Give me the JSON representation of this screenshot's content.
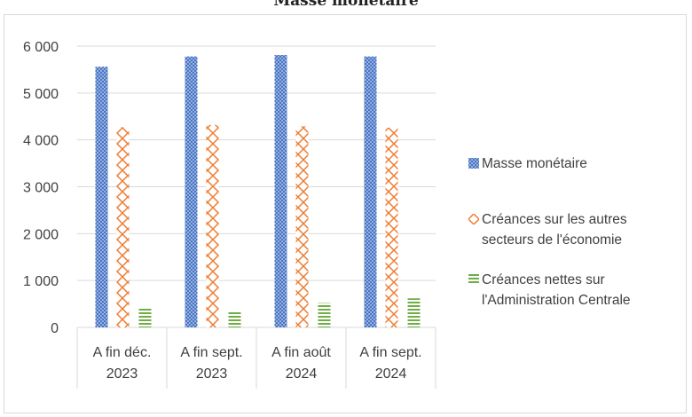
{
  "chart_data": {
    "type": "bar",
    "title": "Masse monétaire",
    "categories": [
      [
        "A fin déc.",
        "2023"
      ],
      [
        "A fin sept.",
        "2023"
      ],
      [
        "A fin août",
        "2024"
      ],
      [
        "A fin sept.",
        "2024"
      ]
    ],
    "series": [
      {
        "name": "Masse monétaire",
        "values": [
          5560,
          5780,
          5810,
          5780
        ],
        "color": "#4472c4",
        "pattern": "crosshatch"
      },
      {
        "name": "Créances sur les autres secteurs de l'économie",
        "values": [
          4270,
          4320,
          4290,
          4260
        ],
        "color": "#ed7d31",
        "pattern": "diamond"
      },
      {
        "name": "Créances nettes sur l'Administration Centrale",
        "values": [
          430,
          340,
          520,
          620
        ],
        "color": "#70ad47",
        "pattern": "horizontal-lines"
      }
    ],
    "ylim": [
      0,
      6000
    ],
    "yticks": [
      0,
      1000,
      2000,
      3000,
      4000,
      5000,
      6000
    ],
    "ytick_labels": [
      "0",
      "1 000",
      "2 000",
      "3 000",
      "4 000",
      "5 000",
      "6 000"
    ],
    "grid": true,
    "legend": "right",
    "xlabel": "",
    "ylabel": ""
  }
}
